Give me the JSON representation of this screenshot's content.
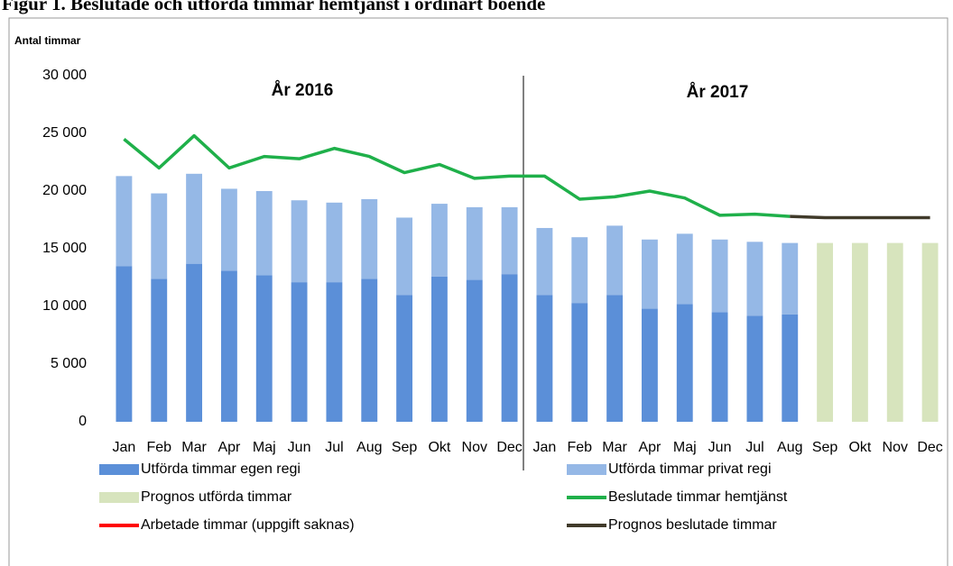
{
  "chart_data": {
    "type": "bar",
    "title": "Figur 1. Beslutade och utförda timmar hemtjänst i ordinärt boende",
    "y_label": "Antal timmar",
    "annotations": [
      "År 2016",
      "År 2017"
    ],
    "categories": [
      "Jan",
      "Feb",
      "Mar",
      "Apr",
      "Maj",
      "Jun",
      "Jul",
      "Aug",
      "Sep",
      "Okt",
      "Nov",
      "Dec",
      "Jan",
      "Feb",
      "Mar",
      "Apr",
      "Maj",
      "Jun",
      "Jul",
      "Aug",
      "Sep",
      "Okt",
      "Nov",
      "Dec"
    ],
    "ylim": [
      0,
      30000
    ],
    "yticks": [
      0,
      {
        "value": 5000,
        "label": "5 000"
      },
      {
        "value": 10000,
        "label": "10 000"
      },
      {
        "value": 15000,
        "label": "15 000"
      },
      {
        "value": 20000,
        "label": "20 000"
      },
      {
        "value": 25000,
        "label": "25 000"
      },
      {
        "value": 30000,
        "label": "30 000"
      }
    ],
    "grid": false,
    "series": [
      {
        "name": "Utförda timmar egen regi",
        "type": "bar",
        "stack": "a",
        "color": "#5b8fd8",
        "values": [
          13500,
          12400,
          13700,
          13100,
          12700,
          12100,
          12100,
          12400,
          11000,
          12600,
          12300,
          12800,
          11000,
          10300,
          11000,
          9800,
          10200,
          9500,
          9200,
          9300,
          null,
          null,
          null,
          null
        ]
      },
      {
        "name": "Utförda timmar privat regi",
        "type": "bar",
        "stack": "a",
        "color": "#95b8e6",
        "values": [
          7800,
          7400,
          7800,
          7100,
          7300,
          7100,
          6900,
          6900,
          6700,
          6300,
          6300,
          5800,
          5800,
          5700,
          6000,
          6000,
          6100,
          6300,
          6400,
          6200,
          null,
          null,
          null,
          null
        ]
      },
      {
        "name": "Prognos utförda timmar",
        "type": "bar",
        "stack": "a",
        "color": "#d7e4bd",
        "values": [
          null,
          null,
          null,
          null,
          null,
          null,
          null,
          null,
          null,
          null,
          null,
          null,
          null,
          null,
          null,
          null,
          null,
          null,
          null,
          null,
          15500,
          15500,
          15500,
          15500
        ]
      },
      {
        "name": "Beslutade timmar hemtjänst",
        "type": "line",
        "color": "#1fb04a",
        "values": [
          24500,
          22000,
          24800,
          22000,
          23000,
          22800,
          23700,
          23000,
          21600,
          22300,
          21100,
          21300,
          21300,
          19300,
          19500,
          20000,
          19400,
          17900,
          18000,
          17800,
          null,
          null,
          null,
          null
        ]
      },
      {
        "name": "Arbetade timmar (uppgift saknas)",
        "type": "line",
        "color": "#ff0000",
        "values": [
          null,
          null,
          null,
          null,
          null,
          null,
          null,
          null,
          null,
          null,
          null,
          null,
          null,
          null,
          null,
          null,
          null,
          null,
          null,
          null,
          null,
          null,
          null,
          null
        ]
      },
      {
        "name": "Prognos beslutade timmar",
        "type": "line",
        "color": "#403a2a",
        "values": [
          null,
          null,
          null,
          null,
          null,
          null,
          null,
          null,
          null,
          null,
          null,
          null,
          null,
          null,
          null,
          null,
          null,
          null,
          null,
          17800,
          17700,
          17700,
          17700,
          17700
        ]
      }
    ]
  }
}
